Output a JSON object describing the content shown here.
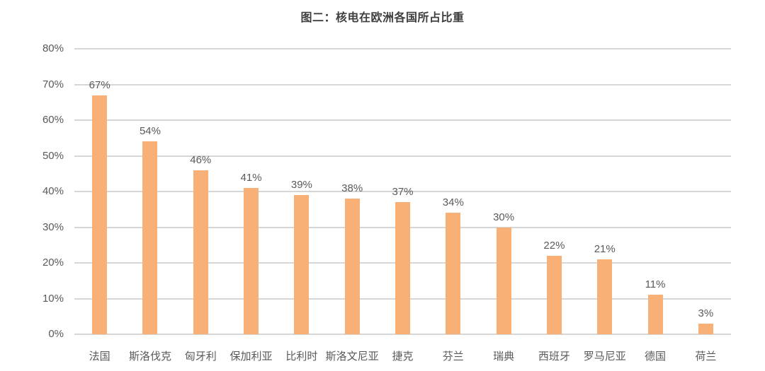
{
  "title": "图二：核电在欧洲各国所占比重",
  "colors": {
    "bar": "#f8b076",
    "gridline": "#d6d6d6",
    "axis_text": "#595959",
    "title_text": "#3f3f3f",
    "background": "#ffffff"
  },
  "chart_data": {
    "type": "bar",
    "title": "图二：核电在欧洲各国所占比重",
    "categories": [
      "法国",
      "斯洛伐克",
      "匈牙利",
      "保加利亚",
      "比利时",
      "斯洛文尼亚",
      "捷克",
      "芬兰",
      "瑞典",
      "西班牙",
      "罗马尼亚",
      "德国",
      "荷兰"
    ],
    "values": [
      67,
      54,
      46,
      41,
      39,
      38,
      37,
      34,
      30,
      22,
      21,
      11,
      3
    ],
    "value_labels": [
      "67%",
      "54%",
      "46%",
      "41%",
      "39%",
      "38%",
      "37%",
      "34%",
      "30%",
      "22%",
      "21%",
      "11%",
      "3%"
    ],
    "y_ticks": [
      "80%",
      "70%",
      "60%",
      "50%",
      "40%",
      "30%",
      "20%",
      "10%",
      "0%"
    ],
    "y_tick_values": [
      80,
      70,
      60,
      50,
      40,
      30,
      20,
      10,
      0
    ],
    "ylim": [
      0,
      80
    ],
    "xlabel": "",
    "ylabel": "",
    "grid": true,
    "legend_position": "none",
    "bar_color": "#f8b076",
    "series_name": ""
  }
}
